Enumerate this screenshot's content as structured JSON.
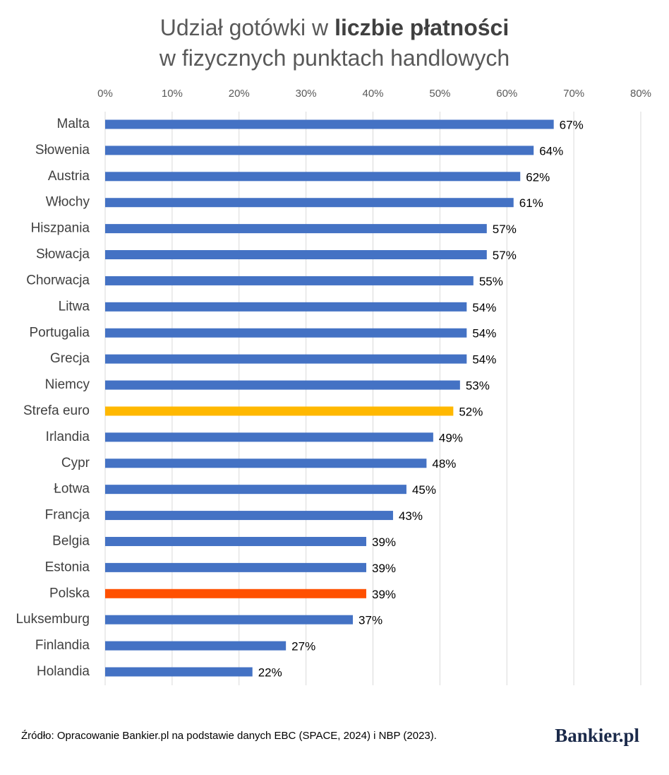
{
  "chart_data": {
    "type": "hbar",
    "title_lines": [
      [
        {
          "text": "Udział gotówki w",
          "bold": false
        },
        {
          "text": "liczbie płatności",
          "bold": true
        }
      ],
      [
        {
          "text": "w fizycznych punktach handlowych",
          "bold": false
        }
      ]
    ],
    "categories": [
      "Malta",
      "Słowenia",
      "Austria",
      "Włochy",
      "Hiszpania",
      "Słowacja",
      "Chorwacja",
      "Litwa",
      "Portugalia",
      "Grecja",
      "Niemcy",
      "Strefa euro",
      "Irlandia",
      "Cypr",
      "Łotwa",
      "Francja",
      "Belgia",
      "Estonia",
      "Polska",
      "Luksemburg",
      "Finlandia",
      "Holandia"
    ],
    "values": [
      67,
      64,
      62,
      61,
      57,
      57,
      55,
      54,
      54,
      54,
      53,
      52,
      49,
      48,
      45,
      43,
      39,
      39,
      39,
      37,
      27,
      22
    ],
    "value_labels": [
      "67%",
      "64%",
      "62%",
      "61%",
      "57%",
      "57%",
      "55%",
      "54%",
      "54%",
      "54%",
      "53%",
      "52%",
      "49%",
      "48%",
      "45%",
      "43%",
      "39%",
      "39%",
      "39%",
      "37%",
      "27%",
      "22%"
    ],
    "colors": [
      "#4472c4",
      "#4472c4",
      "#4472c4",
      "#4472c4",
      "#4472c4",
      "#4472c4",
      "#4472c4",
      "#4472c4",
      "#4472c4",
      "#4472c4",
      "#4472c4",
      "#ffb800",
      "#4472c4",
      "#4472c4",
      "#4472c4",
      "#4472c4",
      "#4472c4",
      "#4472c4",
      "#ff5000",
      "#4472c4",
      "#4472c4",
      "#4472c4"
    ],
    "xlim": [
      0,
      80
    ],
    "xticks": [
      {
        "value": 0,
        "label": "0%"
      },
      {
        "value": 10,
        "label": "10%"
      },
      {
        "value": 20,
        "label": "20%"
      },
      {
        "value": 30,
        "label": "30%"
      },
      {
        "value": 40,
        "label": "40%"
      },
      {
        "value": 50,
        "label": "50%"
      },
      {
        "value": 60,
        "label": "60%"
      },
      {
        "value": 70,
        "label": "70%"
      },
      {
        "value": 80,
        "label": "80%"
      }
    ],
    "grid": true,
    "source": "Źródło: Opracowanie Bankier.pl na podstawie danych EBC (SPACE, 2024) i NBP (2023).",
    "logo": "Bankier.pl"
  }
}
